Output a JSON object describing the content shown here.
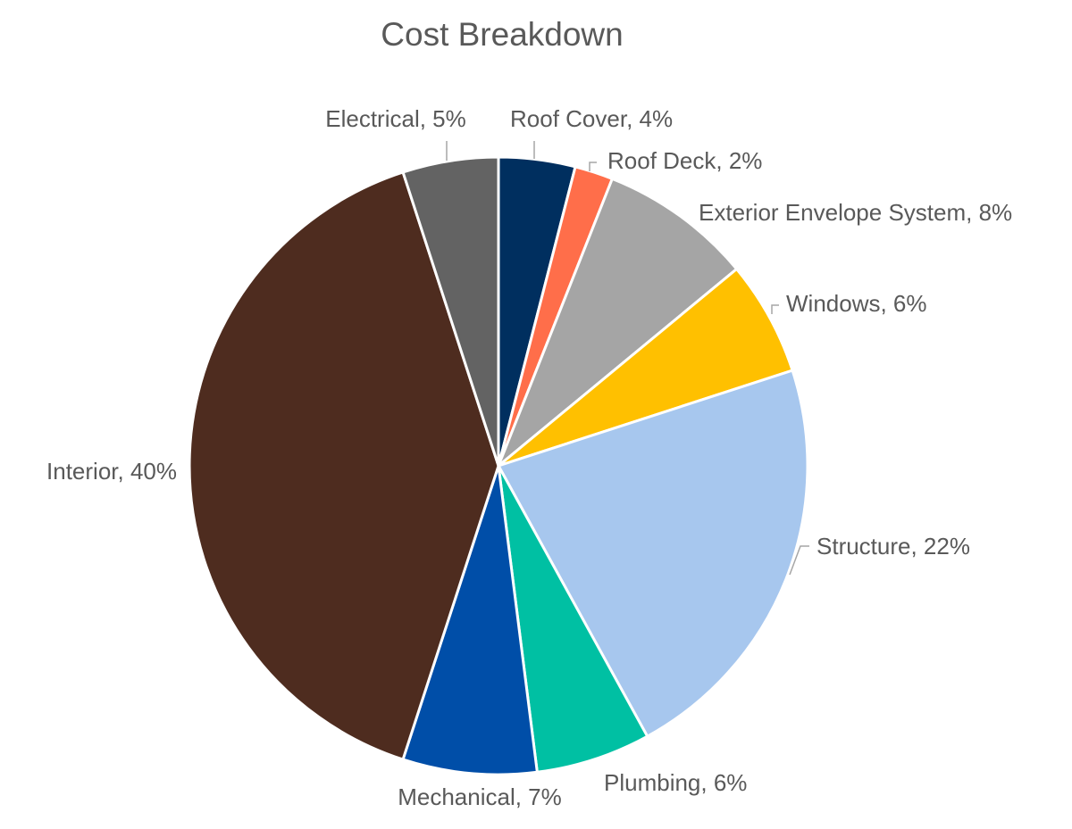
{
  "chart_data": {
    "type": "pie",
    "title": "Cost Breakdown",
    "slices": [
      {
        "label": "Roof Cover",
        "value": 4,
        "display": "4%",
        "color": "#002f5f"
      },
      {
        "label": "Roof Deck",
        "value": 2,
        "display": "2%",
        "color": "#ff6e4a"
      },
      {
        "label": "Exterior Envelope System",
        "value": 8,
        "display": "8%",
        "color": "#a5a5a5"
      },
      {
        "label": "Windows",
        "value": 6,
        "display": "6%",
        "color": "#ffc000"
      },
      {
        "label": "Structure",
        "value": 22,
        "display": "22%",
        "color": "#a7c7ee"
      },
      {
        "label": "Plumbing",
        "value": 6,
        "display": "6%",
        "color": "#00c0a3"
      },
      {
        "label": "Mechanical",
        "value": 7,
        "display": "7%",
        "color": "#004ea8"
      },
      {
        "label": "Interior",
        "value": 40,
        "display": "40%",
        "color": "#4e2c1f"
      },
      {
        "label": "Electrical",
        "value": 5,
        "display": "5%",
        "color": "#636363"
      }
    ],
    "start_angle": "top",
    "direction": "clockwise",
    "legend": "none",
    "data_labels": "outside"
  }
}
